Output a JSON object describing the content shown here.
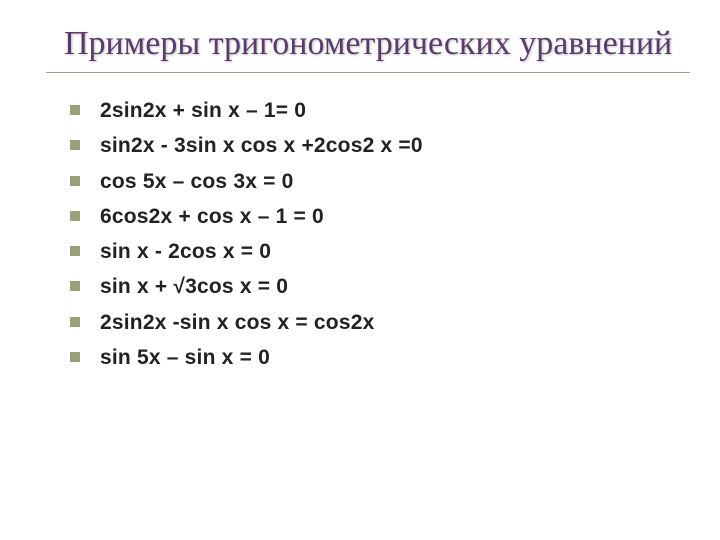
{
  "slide": {
    "title": "Примеры тригонометрических уравнений",
    "title_color": "#5a3b6b",
    "title_fontsize": 34,
    "rule_color": "#9aa07a",
    "bullet_color": "#9aa07a",
    "item_fontsize": 21,
    "item_color": "#222222",
    "items": [
      "2sin2x + sin x – 1= 0",
      "sin2x - 3sin x cos x +2cos2 x =0",
      "cos 5x – cos 3x = 0",
      "6cos2x + cos x – 1 = 0",
      "sin x - 2cos x = 0",
      "sin x + √3cos x = 0",
      "2sin2x -sin x cos x = cos2x",
      "sin 5x – sin x = 0"
    ]
  }
}
